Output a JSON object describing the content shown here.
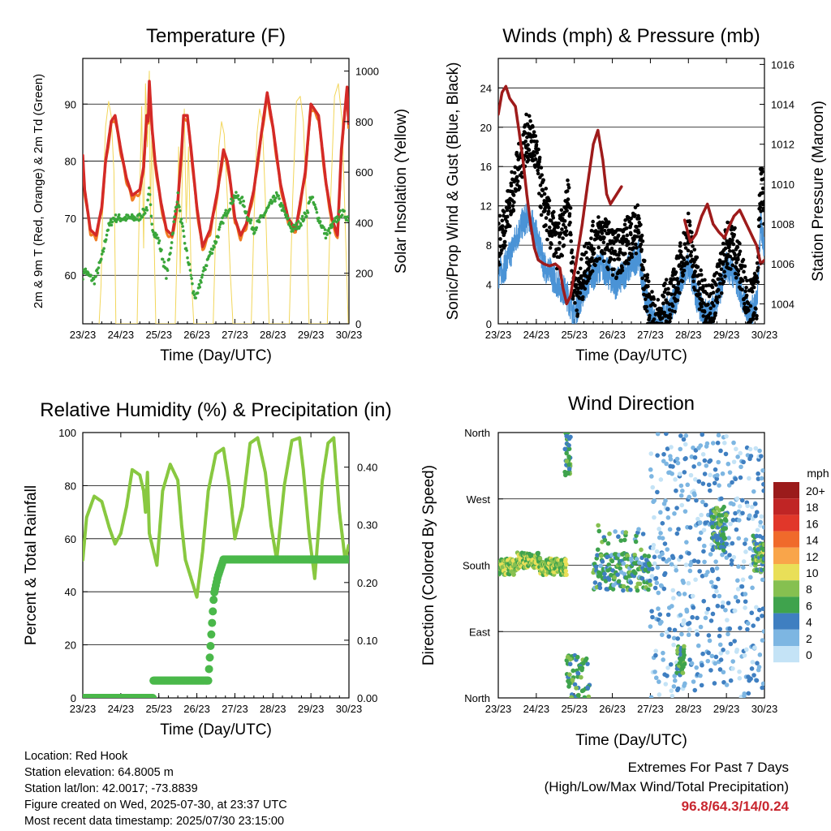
{
  "x_ticks": [
    "23/23",
    "24/23",
    "25/23",
    "26/23",
    "27/23",
    "28/23",
    "29/23",
    "30/23"
  ],
  "xlabel": "Time (Day/UTC)",
  "colors": {
    "temp2m": "#d42a27",
    "temp9m": "#f07c22",
    "dewpoint": "#3aa63a",
    "solar": "#f2d65a",
    "sonic": "#4a93d6",
    "gust": "#000000",
    "pressure": "#9e1b1b",
    "rh": "#88c840",
    "precip": "#4ab84a"
  },
  "chart_data": [
    {
      "type": "line",
      "title": "Temperature (F)",
      "ylabel": "2m & 9m T (Red, Orange) & 2m Td (Green)",
      "y2label": "Solar Insolation (Yellow)",
      "ylim": [
        51.5,
        98
      ],
      "y_ticks": [
        60,
        70,
        80,
        90
      ],
      "y2lim": [
        0,
        1050
      ],
      "y2_ticks": [
        0,
        200,
        400,
        600,
        800,
        1000
      ],
      "x_range_days": [
        23,
        30
      ],
      "series": [
        {
          "key": "temp2m",
          "x": [
            23.0,
            23.05,
            23.2,
            23.35,
            23.5,
            23.6,
            23.75,
            23.85,
            24.0,
            24.15,
            24.3,
            24.5,
            24.6,
            24.68,
            24.72,
            24.75,
            24.82,
            24.9,
            25.05,
            25.2,
            25.35,
            25.5,
            25.6,
            25.65,
            25.75,
            25.85,
            26.0,
            26.15,
            26.35,
            26.55,
            26.7,
            26.8,
            26.85,
            27.0,
            27.15,
            27.3,
            27.5,
            27.7,
            27.85,
            28.0,
            28.2,
            28.4,
            28.6,
            28.85,
            29.0,
            29.2,
            29.4,
            29.55,
            29.7,
            29.8,
            29.95,
            30.0
          ],
          "y": [
            81,
            75,
            68,
            67,
            72,
            80,
            87,
            88,
            82,
            77,
            74,
            75,
            79,
            88,
            87,
            94,
            86,
            80,
            73,
            68,
            67,
            73,
            82,
            88,
            88,
            82,
            72,
            65,
            68,
            75,
            82,
            80,
            78,
            70,
            67,
            69,
            75,
            85,
            92,
            86,
            76,
            70,
            68,
            78,
            90,
            88,
            76,
            70,
            67,
            82,
            93,
            85
          ]
        },
        {
          "key": "dewpoint",
          "x": [
            23.0,
            23.05,
            23.15,
            23.3,
            23.5,
            23.65,
            23.8,
            24.0,
            24.3,
            24.45,
            24.6,
            24.7,
            24.75,
            24.8,
            24.85,
            25.0,
            25.1,
            25.2,
            25.3,
            25.45,
            25.5,
            25.55,
            25.7,
            25.85,
            25.9,
            26.0,
            26.1,
            26.3,
            26.5,
            26.7,
            26.85,
            27.0,
            27.2,
            27.35,
            27.5,
            27.7,
            27.9,
            28.1,
            28.3,
            28.5,
            28.7,
            28.9,
            29.0,
            29.2,
            29.4,
            29.6,
            29.8,
            30.0
          ],
          "y": [
            60,
            61,
            60,
            59,
            63,
            68,
            70,
            70,
            70,
            70,
            71,
            72,
            75,
            70,
            68,
            66,
            63,
            60,
            64,
            72,
            74,
            71,
            65,
            60,
            57,
            56,
            59,
            63,
            66,
            70,
            72,
            74,
            73,
            70,
            68,
            70,
            72,
            74,
            71,
            68,
            69,
            71,
            74,
            70,
            67,
            69,
            71,
            70
          ]
        },
        {
          "key": "solar",
          "x": [
            23.43,
            23.48,
            23.53,
            23.6,
            23.68,
            23.75,
            23.82,
            23.87,
            24.43,
            24.48,
            24.55,
            24.6,
            24.65,
            24.7,
            24.75,
            24.78,
            24.82,
            24.88,
            24.92,
            25.43,
            25.48,
            25.52,
            25.56,
            25.62,
            25.67,
            25.72,
            25.78,
            25.85,
            25.92,
            26.43,
            26.5,
            26.58,
            26.65,
            26.72,
            26.8,
            26.88,
            26.95,
            27.43,
            27.5,
            27.58,
            27.65,
            27.72,
            27.8,
            27.9,
            28.43,
            28.52,
            28.62,
            28.72,
            28.8,
            28.9,
            28.95,
            29.43,
            29.52,
            29.62,
            29.72,
            29.82,
            29.92,
            29.98
          ],
          "y": [
            0,
            150,
            500,
            780,
            880,
            820,
            600,
            0,
            0,
            400,
            860,
            300,
            950,
            700,
            1000,
            400,
            800,
            300,
            0,
            0,
            300,
            700,
            200,
            600,
            850,
            400,
            700,
            200,
            0,
            0,
            400,
            700,
            800,
            750,
            500,
            200,
            0,
            0,
            400,
            750,
            850,
            800,
            500,
            0,
            0,
            500,
            880,
            900,
            800,
            400,
            0,
            0,
            500,
            900,
            950,
            800,
            300,
            0
          ]
        }
      ]
    },
    {
      "type": "line",
      "title": "Winds (mph) & Pressure (mb)",
      "ylabel": "Sonic/Prop Wind & Gust (Blue, Black)",
      "y2label": "Station Pressure (Maroon)",
      "ylim": [
        0,
        27
      ],
      "y_ticks": [
        0,
        4,
        8,
        12,
        16,
        20,
        24
      ],
      "y2lim": [
        1003.0,
        1016.3
      ],
      "y2_ticks": [
        1004,
        1006,
        1008,
        1010,
        1012,
        1014,
        1016
      ],
      "series": [
        {
          "key": "sonic",
          "x": [
            23.0,
            23.2,
            23.4,
            23.6,
            23.8,
            24.0,
            24.2,
            24.4,
            24.6,
            24.8,
            24.9,
            25.0,
            25.1,
            25.3,
            25.5,
            25.7,
            25.9,
            26.1,
            26.3,
            26.5,
            26.7,
            26.85,
            27.0,
            27.2,
            27.4,
            27.6,
            27.8,
            28.0,
            28.2,
            28.4,
            28.6,
            28.8,
            29.0,
            29.2,
            29.4,
            29.6,
            29.8,
            29.9,
            30.0
          ],
          "y": [
            5,
            6,
            8,
            10,
            11,
            9,
            6,
            5,
            4,
            3,
            2,
            1,
            2,
            4,
            5,
            6,
            5,
            4,
            5,
            6,
            7,
            3,
            1,
            0,
            1,
            2,
            4,
            6,
            3,
            1,
            1,
            3,
            6,
            5,
            3,
            1,
            2,
            10,
            8
          ]
        },
        {
          "key": "gust",
          "x": [
            23.0,
            23.15,
            23.35,
            23.55,
            23.75,
            23.95,
            24.15,
            24.35,
            24.55,
            24.75,
            24.85,
            24.95,
            25.1,
            25.3,
            25.5,
            25.7,
            25.9,
            26.1,
            26.3,
            26.5,
            26.7,
            26.85,
            27.0,
            27.2,
            27.4,
            27.6,
            27.8,
            28.0,
            28.2,
            28.4,
            28.6,
            28.8,
            29.0,
            29.2,
            29.4,
            29.6,
            29.8,
            29.9,
            30.0
          ],
          "y": [
            8,
            10,
            13,
            16,
            19,
            18,
            13,
            10,
            8,
            10,
            14,
            5,
            3,
            6,
            8,
            9,
            8,
            7,
            8,
            9,
            10,
            4,
            1,
            0,
            2,
            3,
            6,
            9,
            5,
            2,
            2,
            4,
            8,
            8,
            5,
            2,
            3,
            14,
            12
          ]
        },
        {
          "key": "pressure",
          "x": [
            23.0,
            23.1,
            23.2,
            23.3,
            23.45,
            23.55,
            23.65,
            23.75,
            23.85,
            23.95,
            24.05,
            24.2,
            24.35,
            24.5,
            24.62,
            24.7,
            24.8,
            24.9,
            25.05,
            25.2,
            25.35,
            25.5,
            25.62,
            25.75,
            25.85,
            25.95,
            26.05,
            26.15,
            26.25
          ],
          "y": [
            1013.5,
            1014.6,
            1014.9,
            1014.3,
            1013.9,
            1012.6,
            1011.2,
            1009.5,
            1008.0,
            1006.8,
            1006.2,
            1006.0,
            1005.9,
            1006.0,
            1005.8,
            1004.8,
            1004.0,
            1004.4,
            1006.1,
            1007.9,
            1010.0,
            1012.0,
            1012.7,
            1011.2,
            1009.5,
            1009.0,
            1009.3,
            1009.6,
            1009.9
          ]
        },
        {
          "key": "pressure",
          "x": [
            27.9,
            28.05,
            28.2,
            28.35,
            28.5,
            28.65,
            28.8,
            28.95,
            29.05,
            29.2,
            29.35,
            29.5,
            29.65,
            29.8,
            29.9,
            30.0
          ],
          "y": [
            1008.2,
            1007.1,
            1007.5,
            1008.4,
            1009.0,
            1008.0,
            1007.6,
            1007.3,
            1007.8,
            1008.4,
            1008.7,
            1008.1,
            1007.5,
            1006.9,
            1006.0,
            1006.2
          ]
        }
      ]
    },
    {
      "type": "line",
      "title": "Relative Humidity (%) & Precipitation (in)",
      "ylabel": "Percent & Total Rainfall",
      "ylim": [
        0,
        100
      ],
      "y_ticks": [
        0,
        20,
        40,
        60,
        80,
        100
      ],
      "y2lim": [
        0,
        0.46
      ],
      "y2_ticks": [
        "0.00",
        "0.10",
        "0.20",
        "0.30",
        "0.40"
      ],
      "series": [
        {
          "key": "rh",
          "x": [
            23.0,
            23.1,
            23.3,
            23.5,
            23.7,
            23.85,
            24.0,
            24.15,
            24.3,
            24.5,
            24.6,
            24.65,
            24.7,
            24.75,
            24.85,
            24.95,
            25.1,
            25.3,
            25.5,
            25.6,
            25.7,
            25.85,
            26.0,
            26.15,
            26.3,
            26.5,
            26.7,
            26.85,
            27.0,
            27.2,
            27.4,
            27.6,
            27.8,
            27.95,
            28.1,
            28.3,
            28.5,
            28.7,
            28.8,
            28.95,
            29.1,
            29.3,
            29.45,
            29.6,
            29.75,
            29.9,
            30.0
          ],
          "y": [
            52,
            68,
            76,
            74,
            64,
            58,
            62,
            72,
            86,
            84,
            78,
            70,
            85,
            62,
            56,
            50,
            78,
            88,
            82,
            65,
            52,
            45,
            38,
            55,
            78,
            92,
            94,
            80,
            60,
            72,
            96,
            98,
            85,
            65,
            52,
            80,
            97,
            98,
            86,
            62,
            45,
            82,
            96,
            98,
            70,
            52,
            58
          ]
        },
        {
          "key": "precip",
          "x": [
            23.0,
            24.85,
            24.86,
            26.3,
            26.35,
            26.45,
            26.55,
            26.7,
            30.0
          ],
          "y": [
            0.0,
            0.0,
            0.03,
            0.03,
            0.08,
            0.18,
            0.21,
            0.24,
            0.24
          ]
        }
      ]
    },
    {
      "type": "scatter",
      "title": "Wind Direction",
      "ylabel": "Direction (Colored By Speed)",
      "y_tick_labels": [
        "North",
        "East",
        "South",
        "West",
        "North"
      ],
      "ylim": [
        0,
        360
      ],
      "legend_title": "mph",
      "legend_placement": "right",
      "legend_labels": [
        "20+",
        "18",
        "16",
        "14",
        "12",
        "10",
        "8",
        "6",
        "4",
        "2",
        "0"
      ],
      "legend_colors": [
        "#9b1b1b",
        "#c02525",
        "#e1372a",
        "#f06a2b",
        "#f9a54a",
        "#e9df58",
        "#86c050",
        "#3fa34d",
        "#3f7fc1",
        "#7db6e2",
        "#c4e3f6"
      ]
    }
  ],
  "info": {
    "location": "Location: Red Hook",
    "elevation": "Station elevation: 64.8005 m",
    "latlon": "Station lat/lon: 42.0017; -73.8839",
    "created": "Figure created on Wed, 2025-07-30, at 23:37 UTC",
    "recent": "Most recent data timestamp: 2025/07/30 23:15:00"
  },
  "extremes": {
    "line1": "Extremes For Past 7 Days",
    "line2": "(High/Low/Max Wind/Total Precipitation)",
    "values": "96.8/64.3/14/0.24"
  }
}
